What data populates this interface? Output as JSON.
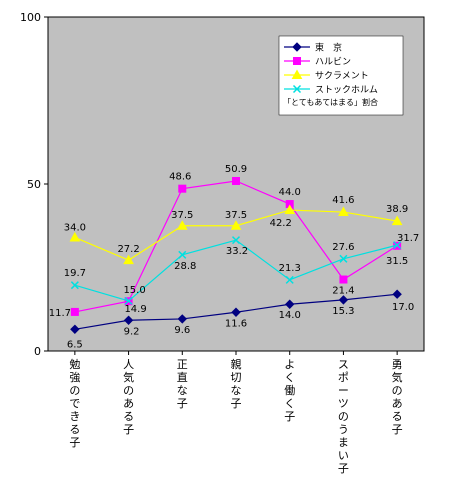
{
  "chart_data": {
    "type": "line",
    "title": "",
    "xlabel": "",
    "ylabel": "",
    "ylim": [
      0,
      100
    ],
    "yticks": [
      "0",
      "50",
      "100"
    ],
    "grid": false,
    "legend_position": "top-right",
    "categories": [
      "勉強のできる子",
      "人気のある子",
      "正直な子",
      "親切な子",
      "よく働く子",
      "スポーツのうまい子",
      "勇気のある子"
    ],
    "series": [
      {
        "name": "東　京",
        "color": "#000080",
        "marker": "diamond",
        "values": [
          6.5,
          9.2,
          9.6,
          11.6,
          14.0,
          15.3,
          17.0
        ],
        "labels": [
          "6.5",
          "9.2",
          "9.6",
          "11.6",
          "14.0",
          "15.3",
          "17.0"
        ]
      },
      {
        "name": "ハルビン",
        "color": "#ff00ff",
        "marker": "square",
        "values": [
          11.7,
          14.9,
          48.6,
          50.9,
          44.0,
          21.4,
          31.5
        ],
        "labels": [
          "11.7",
          "14.9",
          "48.6",
          "50.9",
          "44.0",
          "21.4",
          "31.5"
        ]
      },
      {
        "name": "サクラメント",
        "color": "#ffff00",
        "marker": "triangle",
        "values": [
          34.0,
          27.2,
          37.5,
          37.5,
          42.2,
          41.6,
          38.9
        ],
        "labels": [
          "34.0",
          "27.2",
          "37.5",
          "37.5",
          "42.2",
          "41.6",
          "38.9"
        ]
      },
      {
        "name": "ストックホルム",
        "color": "#00e0e0",
        "marker": "x",
        "values": [
          19.7,
          15.0,
          28.8,
          33.2,
          21.3,
          27.6,
          31.7
        ],
        "labels": [
          "19.7",
          "15.0",
          "28.8",
          "33.2",
          "21.3",
          "27.6",
          "31.7"
        ]
      }
    ],
    "legend_note": "「とてもあてはまる」割合",
    "plot_background": "#c0c0c0",
    "axis_color": "#000000"
  }
}
